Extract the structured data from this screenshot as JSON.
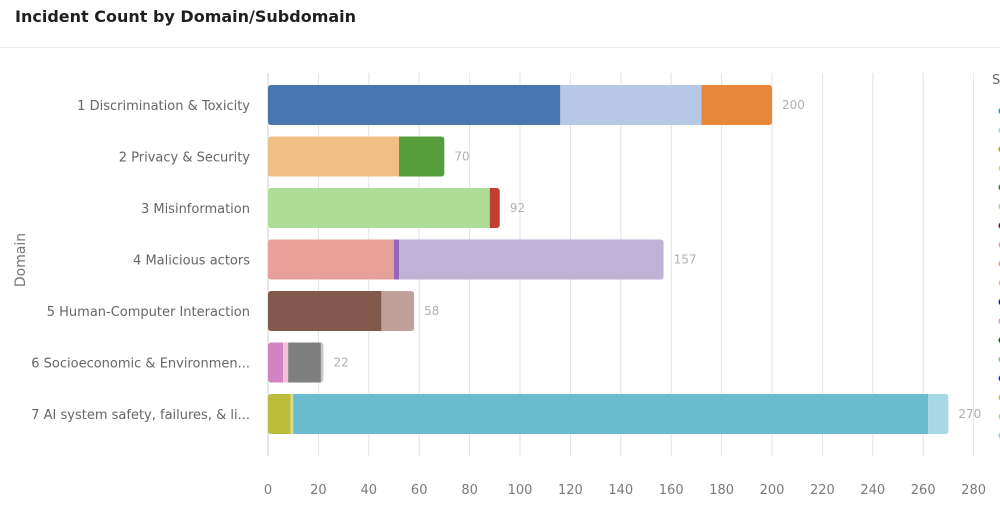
{
  "header": {
    "title": "Incident Count by Domain/Subdomain"
  },
  "chart_data": {
    "type": "bar",
    "orientation": "horizontal",
    "stacked": true,
    "title": "Incident Count by Domain/Subdomain",
    "ylabel": "Domain",
    "xlabel": "",
    "xlim": [
      0,
      280
    ],
    "xticks": [
      0,
      20,
      40,
      60,
      80,
      100,
      120,
      140,
      160,
      180,
      200,
      220,
      240,
      260,
      280
    ],
    "grid": true,
    "legend_title": "S",
    "legend_colors": [
      "#1f9ea8",
      "#9bd8e0",
      "#a8a020",
      "#d8d08a",
      "#2e7d32",
      "#a5d6a7",
      "#6a1b3a",
      "#e8a0b8",
      "#e8a0a0",
      "#f0b0c0",
      "#1a237e",
      "#c5a0d0",
      "#1b5e20",
      "#90c090",
      "#0d47a1",
      "#c0c060",
      "#b0d8b0",
      "#a0c8e0"
    ],
    "categories": [
      "1 Discrimination & Toxicity",
      "2 Privacy & Security",
      "3 Misinformation",
      "4 Malicious actors",
      "5 Human-Computer Interaction",
      "6 Socioeconomic & Environmen...",
      "7 AI system safety, failures, & li..."
    ],
    "bars": [
      {
        "total": 200,
        "segments": [
          {
            "value": 116,
            "color": "#4876b0"
          },
          {
            "value": 56,
            "color": "#b7c7e6"
          },
          {
            "value": 28,
            "color": "#e8873a"
          }
        ]
      },
      {
        "total": 70,
        "segments": [
          {
            "value": 52,
            "color": "#f0bf86"
          },
          {
            "value": 18,
            "color": "#569e3c"
          }
        ]
      },
      {
        "total": 92,
        "segments": [
          {
            "value": 88,
            "color": "#addd94"
          },
          {
            "value": 4,
            "color": "#c33e36"
          }
        ]
      },
      {
        "total": 157,
        "segments": [
          {
            "value": 50,
            "color": "#e8a09b"
          },
          {
            "value": 2,
            "color": "#9467bd"
          },
          {
            "value": 105,
            "color": "#c0b2d4"
          }
        ]
      },
      {
        "total": 58,
        "segments": [
          {
            "value": 45,
            "color": "#82594c"
          },
          {
            "value": 13,
            "color": "#c0a09a"
          }
        ]
      },
      {
        "total": 22,
        "segments": [
          {
            "value": 6,
            "color": "#d283c1"
          },
          {
            "value": 2,
            "color": "#f4c0d6"
          },
          {
            "value": 13,
            "color": "#7f7f7f"
          },
          {
            "value": 1,
            "color": "#c7c7c7"
          }
        ]
      },
      {
        "total": 270,
        "segments": [
          {
            "value": 9,
            "color": "#bcbd3a"
          },
          {
            "value": 1,
            "color": "#dbdb8d"
          },
          {
            "value": 252,
            "color": "#68bccd"
          },
          {
            "value": 8,
            "color": "#a9d8e5"
          }
        ]
      }
    ]
  }
}
